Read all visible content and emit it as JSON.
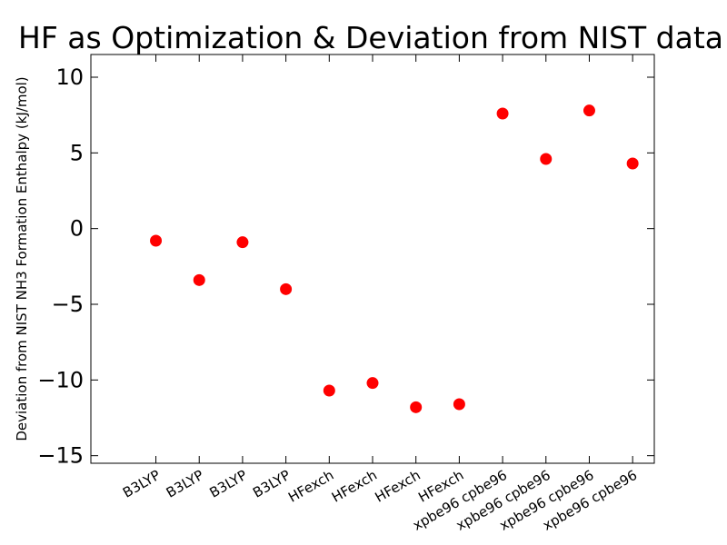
{
  "chart_data": {
    "type": "scatter",
    "title": "HF as Optimization & Deviation from NIST data",
    "xlabel": "",
    "ylabel": "Deviation from NIST NH3 Formation Enthalpy (kJ/mol)",
    "ylim": [
      -15.5,
      11.5
    ],
    "xlim": [
      -0.5,
      12.5
    ],
    "yticks": [
      10,
      5,
      0,
      -5,
      -10,
      -15
    ],
    "ytick_labels": [
      "10",
      "5",
      "0",
      "−5",
      "−10",
      "−15"
    ],
    "categories": [
      "B3LYP",
      "B3LYP",
      "B3LYP",
      "B3LYP",
      "HFexch",
      "HFexch",
      "HFexch",
      "HFexch",
      "xpbe96 cpbe96",
      "xpbe96 cpbe96",
      "xpbe96 cpbe96",
      "xpbe96 cpbe96"
    ],
    "x": [
      1,
      2,
      3,
      4,
      5,
      6,
      7,
      8,
      9,
      10,
      11,
      12
    ],
    "values": [
      -0.8,
      -3.4,
      -0.9,
      -4.0,
      -10.7,
      -10.2,
      -11.8,
      -11.6,
      7.6,
      4.6,
      7.8,
      4.3
    ],
    "marker_color": "#ff0000",
    "grid": false,
    "legend": "none"
  }
}
